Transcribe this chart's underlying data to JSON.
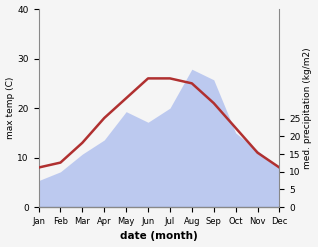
{
  "months": [
    "Jan",
    "Feb",
    "Mar",
    "Apr",
    "May",
    "Jun",
    "Jul",
    "Aug",
    "Sep",
    "Oct",
    "Nov",
    "Dec"
  ],
  "temp": [
    8,
    9,
    13,
    18,
    22,
    26,
    26,
    25,
    21,
    16,
    11,
    8
  ],
  "precip": [
    7.5,
    10,
    15,
    19,
    27,
    24,
    28,
    39,
    36,
    21,
    16,
    11
  ],
  "temp_ylim": [
    0,
    40
  ],
  "precip_ylim": [
    0,
    56
  ],
  "ylabel_left": "max temp (C)",
  "ylabel_right": "med. precipitation (kg/m2)",
  "xlabel": "date (month)",
  "line_color": "#b03030",
  "fill_color": "#aabbee",
  "fill_alpha": 0.75,
  "right_yticks": [
    0,
    5,
    10,
    15,
    20,
    25
  ],
  "right_ytick_max": 25,
  "left_yticks": [
    0,
    10,
    20,
    30,
    40
  ],
  "bg_color": "#f5f5f5"
}
